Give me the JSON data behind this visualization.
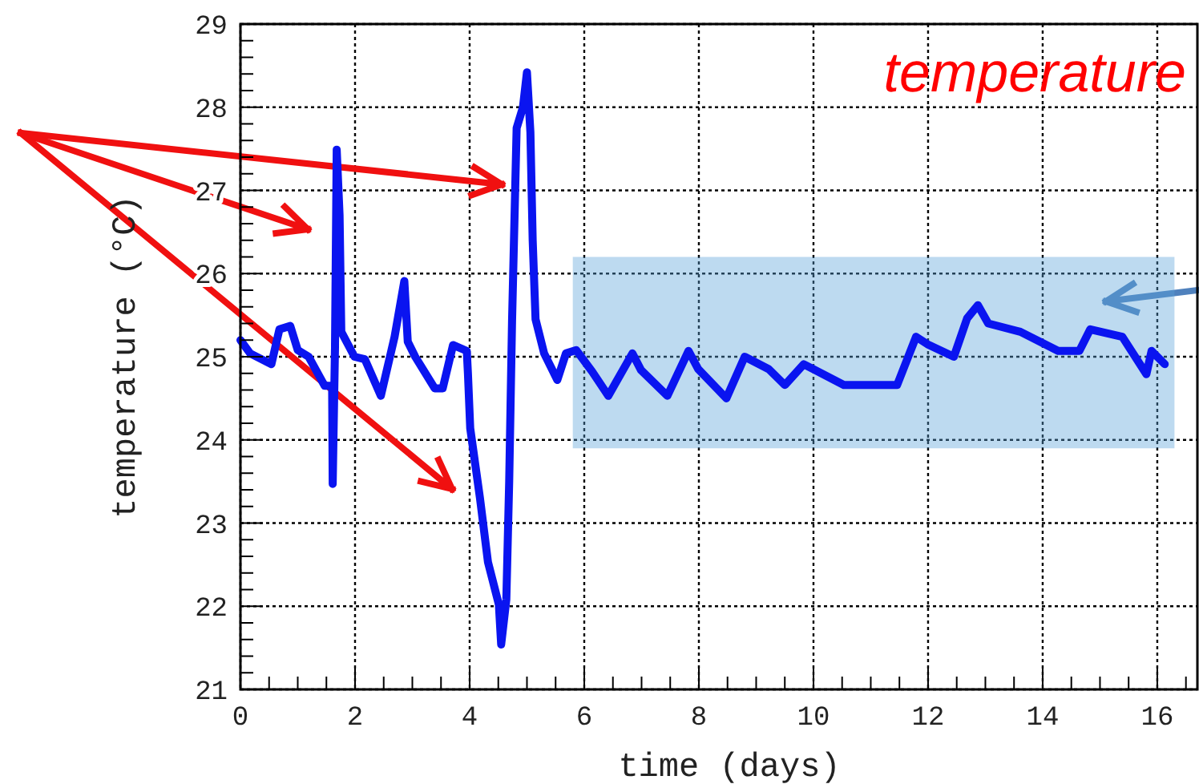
{
  "chart_data": {
    "type": "line",
    "title": "temperature",
    "xlabel": "time (days)",
    "ylabel": "temperature (°C)",
    "xlim": [
      0,
      16.7
    ],
    "ylim": [
      21,
      29
    ],
    "xticks": [
      0,
      {
        "value": 0.5,
        "label": null
      },
      {
        "value": 1,
        "label": null
      },
      {
        "value": 1.5,
        "label": null
      },
      2,
      {
        "value": 2.5,
        "label": null
      },
      {
        "value": 3,
        "label": null
      },
      {
        "value": 3.5,
        "label": null
      },
      4,
      {
        "value": 4.5,
        "label": null
      },
      {
        "value": 5,
        "label": null
      },
      {
        "value": 5.5,
        "label": null
      },
      6,
      {
        "value": 6.5,
        "label": null
      },
      {
        "value": 7,
        "label": null
      },
      {
        "value": 7.5,
        "label": null
      },
      8,
      {
        "value": 8.5,
        "label": null
      },
      {
        "value": 9,
        "label": null
      },
      {
        "value": 9.5,
        "label": null
      },
      10,
      {
        "value": 10.5,
        "label": null
      },
      {
        "value": 11,
        "label": null
      },
      {
        "value": 11.5,
        "label": null
      },
      12,
      {
        "value": 12.5,
        "label": null
      },
      {
        "value": 13,
        "label": null
      },
      {
        "value": 13.5,
        "label": null
      },
      14,
      {
        "value": 14.5,
        "label": null
      },
      {
        "value": 15,
        "label": null
      },
      {
        "value": 15.5,
        "label": null
      },
      16,
      {
        "value": 16.5,
        "label": null
      }
    ],
    "yticks": [
      21,
      {
        "value": 21.2,
        "label": null
      },
      {
        "value": 21.4,
        "label": null
      },
      {
        "value": 21.6,
        "label": null
      },
      {
        "value": 21.8,
        "label": null
      },
      22,
      {
        "value": 22.2,
        "label": null
      },
      {
        "value": 22.4,
        "label": null
      },
      {
        "value": 22.6,
        "label": null
      },
      {
        "value": 22.8,
        "label": null
      },
      23,
      {
        "value": 23.2,
        "label": null
      },
      {
        "value": 23.4,
        "label": null
      },
      {
        "value": 23.6,
        "label": null
      },
      {
        "value": 23.8,
        "label": null
      },
      24,
      {
        "value": 24.2,
        "label": null
      },
      {
        "value": 24.4,
        "label": null
      },
      {
        "value": 24.6,
        "label": null
      },
      {
        "value": 24.8,
        "label": null
      },
      25,
      {
        "value": 25.2,
        "label": null
      },
      {
        "value": 25.4,
        "label": null
      },
      {
        "value": 25.6,
        "label": null
      },
      {
        "value": 25.8,
        "label": null
      },
      26,
      {
        "value": 26.2,
        "label": null
      },
      {
        "value": 26.4,
        "label": null
      },
      {
        "value": 26.6,
        "label": null
      },
      {
        "value": 26.8,
        "label": null
      },
      27,
      {
        "value": 27.2,
        "label": null
      },
      {
        "value": 27.4,
        "label": null
      },
      {
        "value": 27.6,
        "label": null
      },
      {
        "value": 27.8,
        "label": null
      },
      28,
      {
        "value": 28.2,
        "label": null
      },
      {
        "value": 28.4,
        "label": null
      },
      {
        "value": 28.6,
        "label": null
      },
      {
        "value": 28.8,
        "label": null
      },
      29
    ],
    "grid": true,
    "marker": "none",
    "line_style": "solid",
    "series": [
      {
        "type": "line",
        "color": "#5ba3d9",
        "x": [
          5.8,
          16.3
        ],
        "values": [
          null,
          null
        ],
        "lower": [
          23.9,
          23.9
        ],
        "upper": [
          26.2,
          26.2
        ]
      },
      {
        "color": "#0a14f0",
        "x": [
          0,
          0.17,
          0.54,
          0.68,
          0.87,
          1.0,
          1.19,
          1.47,
          1.6,
          1.61,
          1.65,
          1.68,
          1.73,
          1.76,
          1.99,
          2.17,
          2.45,
          2.69,
          2.86,
          2.92,
          3.05,
          3.39,
          3.53,
          3.71,
          3.95,
          3.97,
          4.01,
          4.18,
          4.32,
          4.51,
          4.55,
          4.64,
          4.69,
          4.74,
          4.82,
          4.93,
          5.0,
          5.06,
          5.1,
          5.15,
          5.3,
          5.53,
          5.68,
          5.86,
          6.14,
          6.42,
          6.84,
          6.99,
          7.45,
          7.82,
          7.99,
          8.48,
          8.8,
          9.22,
          9.5,
          9.83,
          10.53,
          11.46,
          11.79,
          11.99,
          12.45,
          12.68,
          12.87,
          13.05,
          13.61,
          14.27,
          14.64,
          14.83,
          15.39,
          15.81,
          15.9,
          16.13
        ],
        "values": [
          25.2,
          25.04,
          24.91,
          25.33,
          25.37,
          25.08,
          25.0,
          24.65,
          24.65,
          23.47,
          25.1,
          27.49,
          26.7,
          25.3,
          25.0,
          24.97,
          24.53,
          25.24,
          25.91,
          25.18,
          25.0,
          24.62,
          24.62,
          25.14,
          25.07,
          24.8,
          24.14,
          23.3,
          22.53,
          22.02,
          21.54,
          22.08,
          23.5,
          25.43,
          27.75,
          28.0,
          28.42,
          27.7,
          26.4,
          25.45,
          25.04,
          24.72,
          25.04,
          25.08,
          24.82,
          24.53,
          25.04,
          24.84,
          24.53,
          25.07,
          24.85,
          24.5,
          25.0,
          24.85,
          24.66,
          24.91,
          24.66,
          24.66,
          25.24,
          25.15,
          25.0,
          25.46,
          25.62,
          25.4,
          25.3,
          25.07,
          25.07,
          25.33,
          25.24,
          24.79,
          25.07,
          24.91
        ]
      }
    ]
  }
}
